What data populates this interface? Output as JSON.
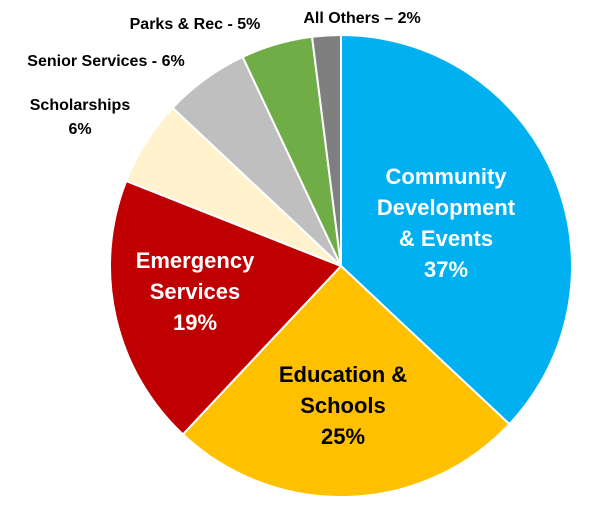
{
  "chart_data": {
    "type": "pie",
    "slices": [
      {
        "label": "Community Development & Events",
        "value": 37,
        "color": "#00B0F0",
        "label_lines": [
          "Community",
          "Development",
          "& Events",
          "37%"
        ]
      },
      {
        "label": "Education & Schools",
        "value": 25,
        "color": "#FFC000",
        "label_lines": [
          "Education &",
          "Schools",
          "25%"
        ]
      },
      {
        "label": "Emergency Services",
        "value": 19,
        "color": "#C00000",
        "label_lines": [
          "Emergency",
          "Services",
          "19%"
        ]
      },
      {
        "label": "Scholarships",
        "value": 6,
        "color": "#FFF2CC",
        "label_lines": [
          "Scholarships",
          "6%"
        ]
      },
      {
        "label": "Senior Services",
        "value": 6,
        "color": "#BFBFBF",
        "label_lines": [
          "Senior Services - 6%"
        ]
      },
      {
        "label": "Parks & Rec",
        "value": 5,
        "color": "#70AD47",
        "label_lines": [
          "Parks & Rec - 5%"
        ]
      },
      {
        "label": "All Others",
        "value": 2,
        "color": "#7F7F7F",
        "label_lines": [
          "All Others – 2%"
        ]
      }
    ],
    "start_angle_deg": 0,
    "direction": "clockwise"
  }
}
